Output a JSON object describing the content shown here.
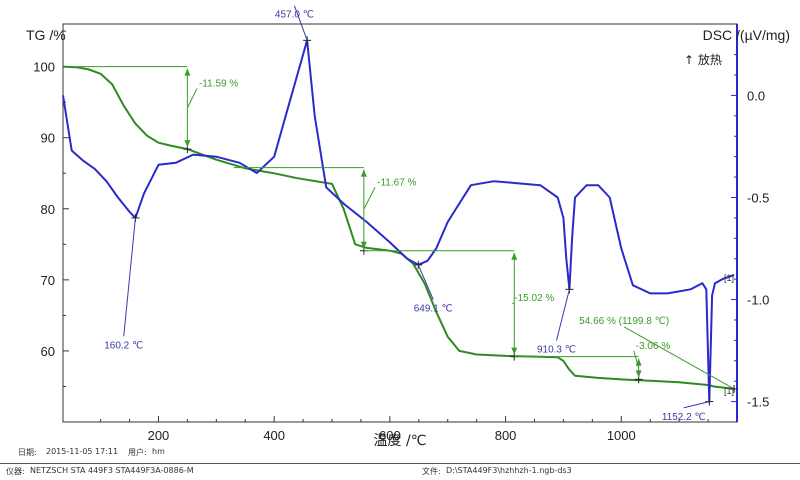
{
  "chart_data": {
    "type": "line",
    "title": "",
    "xlabel": "温度 /℃",
    "xlim": [
      35,
      1200
    ],
    "x_ticks": [
      200,
      400,
      600,
      800,
      1000
    ],
    "y_left": {
      "label": "TG /%",
      "lim": [
        50,
        106
      ],
      "ticks": [
        60,
        70,
        80,
        90,
        100
      ]
    },
    "y_right": {
      "label": "DSC /(µV/mg)",
      "lim": [
        -1.6,
        0.35
      ],
      "ticks": [
        0.0,
        -0.5,
        -1.0,
        -1.5
      ],
      "tick_labels": [
        "0.0",
        "-0.5",
        "-1.0",
        "-1.5"
      ]
    },
    "exo_label": "↑ 放热",
    "colors": {
      "tg": "#2e8b20",
      "dsc": "#2a2acc",
      "annotation_tg": "#3a9a2a",
      "annotation_dsc": "#3a3aa8"
    },
    "series": [
      {
        "key": "tg",
        "axis": "left",
        "x": [
          35,
          60,
          80,
          100,
          120,
          140,
          160,
          180,
          200,
          220,
          250,
          300,
          350,
          400,
          440,
          500,
          520,
          540,
          560,
          580,
          600,
          620,
          640,
          660,
          680,
          700,
          720,
          750,
          800,
          850,
          890,
          900,
          910,
          920,
          960,
          1000,
          1050,
          1100,
          1150,
          1160,
          1180,
          1195
        ],
        "y": [
          100,
          99.9,
          99.6,
          99.0,
          97.5,
          94.5,
          92.0,
          90.3,
          89.3,
          88.9,
          88.4,
          86.9,
          85.7,
          85.0,
          84.3,
          83.5,
          80.0,
          75.0,
          74.5,
          74.3,
          74.1,
          73.7,
          72.3,
          69.5,
          65.5,
          62.0,
          60.0,
          59.5,
          59.3,
          59.2,
          59.1,
          58.6,
          57.4,
          56.5,
          56.2,
          56.0,
          55.8,
          55.6,
          55.2,
          55.0,
          54.8,
          54.66
        ]
      },
      {
        "key": "dsc",
        "axis": "right",
        "x": [
          35,
          50,
          70,
          90,
          110,
          130,
          150,
          160.2,
          175,
          200,
          230,
          260,
          300,
          340,
          370,
          400,
          420,
          440,
          457,
          470,
          490,
          520,
          560,
          600,
          630,
          649.1,
          665,
          680,
          700,
          740,
          780,
          820,
          860,
          890,
          900,
          905,
          910.3,
          915,
          920,
          940,
          960,
          980,
          1000,
          1020,
          1050,
          1080,
          1120,
          1140,
          1147,
          1152.2,
          1157,
          1162,
          1175,
          1195
        ],
        "y": [
          0.0,
          -0.27,
          -0.32,
          -0.36,
          -0.42,
          -0.5,
          -0.57,
          -0.6,
          -0.48,
          -0.34,
          -0.33,
          -0.29,
          -0.3,
          -0.33,
          -0.38,
          -0.3,
          -0.1,
          0.1,
          0.27,
          -0.1,
          -0.45,
          -0.53,
          -0.62,
          -0.72,
          -0.8,
          -0.83,
          -0.81,
          -0.75,
          -0.62,
          -0.44,
          -0.42,
          -0.43,
          -0.44,
          -0.5,
          -0.6,
          -0.8,
          -0.95,
          -0.7,
          -0.5,
          -0.44,
          -0.44,
          -0.5,
          -0.75,
          -0.93,
          -0.97,
          -0.97,
          -0.95,
          -0.92,
          -0.95,
          -1.5,
          -0.98,
          -0.92,
          -0.9,
          -0.88
        ]
      }
    ],
    "annotations": [
      {
        "key": "dsc-peak-1",
        "label": "160.2 ℃",
        "series": "dsc",
        "x": 160.2,
        "y": -0.6,
        "lx": 140,
        "ly": -1.2
      },
      {
        "key": "dsc-peak-2",
        "label": "457.0 ℃",
        "series": "dsc",
        "x": 457,
        "y": 0.27,
        "lx": 435,
        "ly": 0.42
      },
      {
        "key": "dsc-peak-3",
        "label": "649.1 ℃",
        "series": "dsc",
        "x": 649.1,
        "y": -0.83,
        "lx": 675,
        "ly": -1.02
      },
      {
        "key": "dsc-peak-4",
        "label": "910.3 ℃",
        "series": "dsc",
        "x": 910.3,
        "y": -0.95,
        "lx": 888,
        "ly": -1.22
      },
      {
        "key": "dsc-peak-5",
        "label": "1152.2 ℃",
        "series": "dsc",
        "x": 1152.2,
        "y": -1.5,
        "lx": 1108,
        "ly": -1.55
      },
      {
        "key": "tg-step-1",
        "label": "-11.59 %",
        "top": 100,
        "bottom": 88.4,
        "xa": 250,
        "xb": 40,
        "xc": 250,
        "lx": 270,
        "ly": 97.2
      },
      {
        "key": "tg-step-2",
        "label": "-11.67 %",
        "top": 85.8,
        "bottom": 74.1,
        "xa": 555,
        "xb": 330,
        "xc": 555,
        "lx": 578,
        "ly": 83.3
      },
      {
        "key": "tg-step-3",
        "label": "-15.02 %",
        "top": 74.1,
        "bottom": 59.2,
        "xa": 815,
        "xb": 555,
        "xc": 815,
        "lx": 815,
        "ly": 67.0
      },
      {
        "key": "tg-step-4",
        "label": "-3.06 %",
        "top": 59.2,
        "bottom": 56.0,
        "xa": 1030,
        "xb": 815,
        "xc": 1030,
        "lx": 1025,
        "ly": 60.3
      },
      {
        "key": "tg-residual",
        "label": "54.66 % (1199.8 ℃)",
        "lx": 1005,
        "ly": 63.8
      }
    ],
    "curve_tags": [
      "[1]",
      "[1]"
    ]
  },
  "footer": {
    "date_label": "日期:",
    "date": "2015-11-05 17:11",
    "user_label": "用户:",
    "user": "hm",
    "instrument_label": "仪器:",
    "instrument": "NETZSCH STA 449F3 STA449F3A-0886-M",
    "file_label": "文件:",
    "file": "D:\\STA449F3\\hzhhzh-1.ngb-ds3"
  }
}
